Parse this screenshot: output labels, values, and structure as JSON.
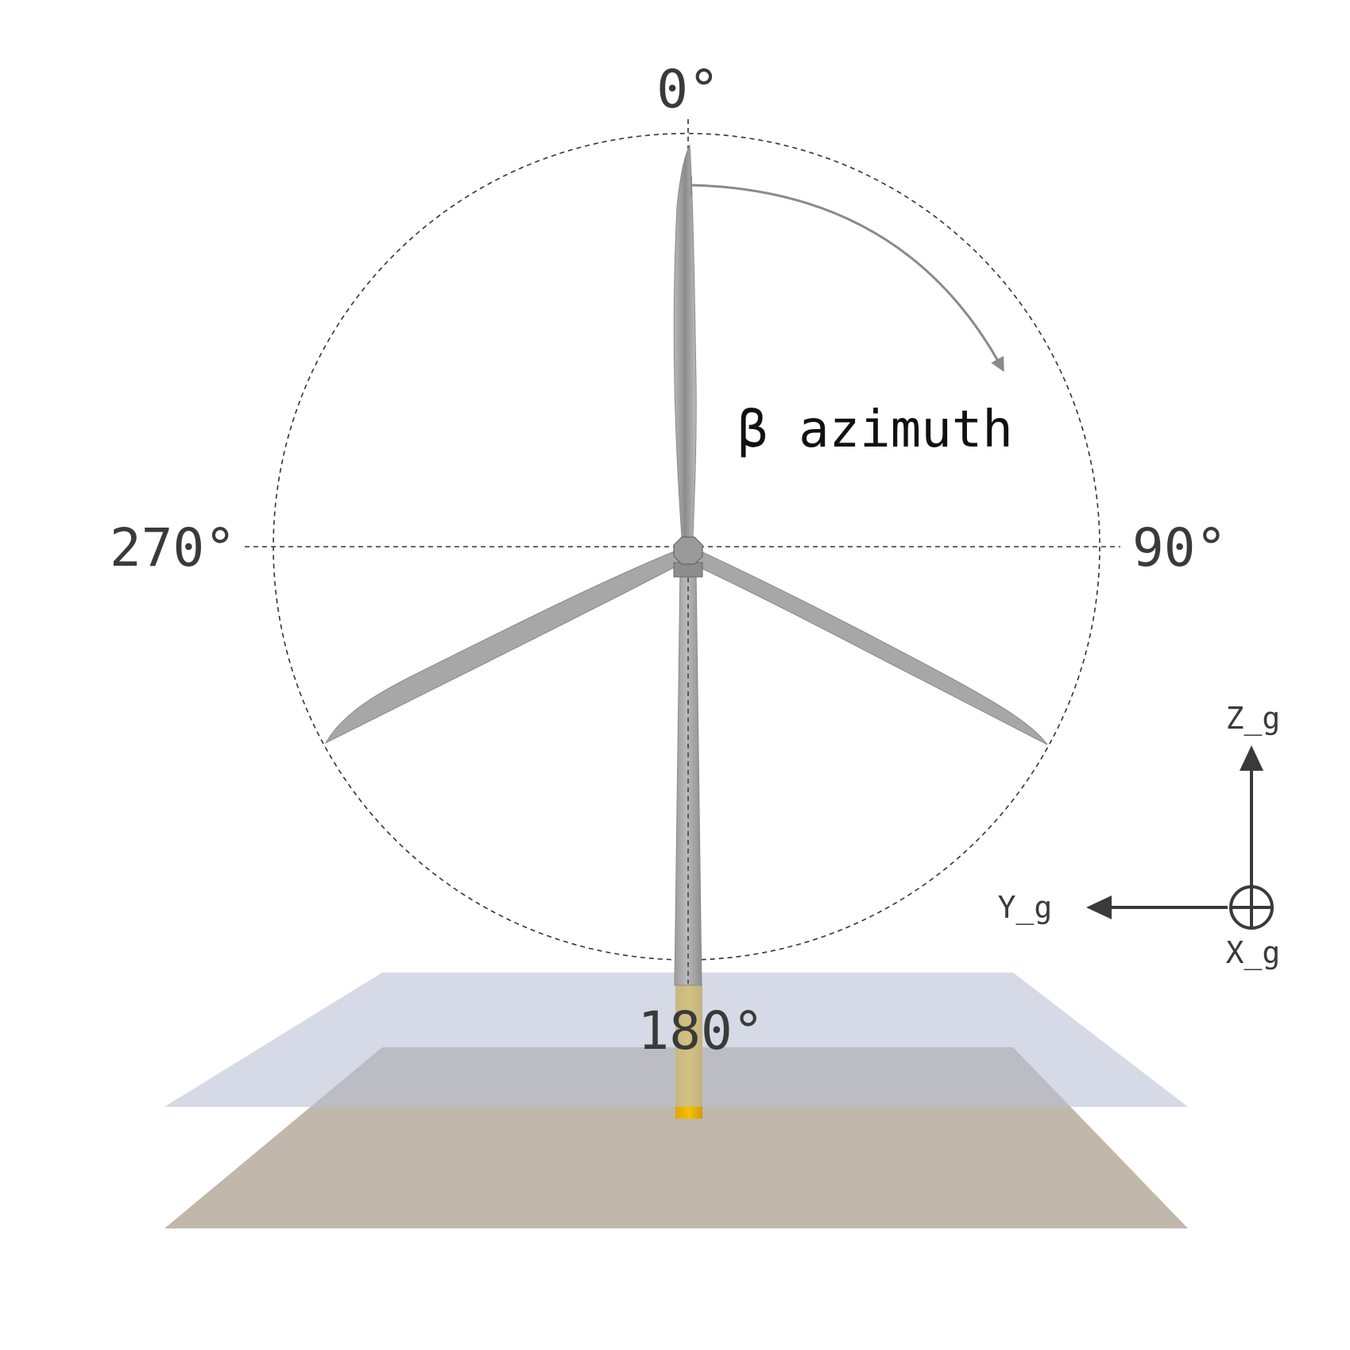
{
  "labels": {
    "deg_0": "0°",
    "deg_90": "90°",
    "deg_180": "180°",
    "deg_270": "270°",
    "azimuth": "β azimuth"
  },
  "axes": {
    "z": "Z_g",
    "y": "Y_g",
    "x": "X_g"
  },
  "colors": {
    "water_surface": "#d6dbe6",
    "seabed": "#c1b7ab",
    "monopile": "#f0b400",
    "turbine": "#9a9a9a",
    "guide_lines": "#333333",
    "arrow": "#8a8a8a"
  }
}
